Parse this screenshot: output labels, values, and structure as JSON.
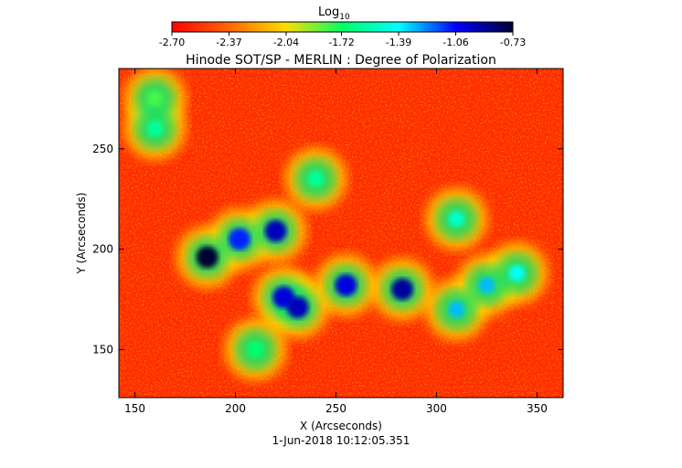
{
  "colorbar": {
    "label": "Log",
    "label_subscript": "10",
    "ticks": [
      "-2.70",
      "-2.37",
      "-2.04",
      "-1.72",
      "-1.39",
      "-1.06",
      "-0.73"
    ],
    "range": [
      -2.7,
      -0.73
    ],
    "colormap": [
      "#ff0000",
      "#ff6600",
      "#ffdd00",
      "#00ff66",
      "#00ffff",
      "#0000ff",
      "#000033"
    ]
  },
  "chart_data": {
    "type": "heatmap",
    "title": "Hinode SOT/SP - MERLIN : Degree of Polarization",
    "xlabel": "X (Arcseconds)",
    "ylabel": "Y (Arcseconds)",
    "xlim": [
      142,
      363
    ],
    "ylim": [
      126,
      290
    ],
    "xticks": [
      150,
      200,
      250,
      300,
      350
    ],
    "yticks": [
      150,
      200,
      250
    ],
    "value_label": "Log10 Degree of Polarization",
    "value_range": [
      -2.7,
      -0.73
    ],
    "features": [
      {
        "x": 186,
        "y": 196,
        "value": -0.73
      },
      {
        "x": 220,
        "y": 209,
        "value": -0.95
      },
      {
        "x": 202,
        "y": 205,
        "value": -1.1
      },
      {
        "x": 224,
        "y": 176,
        "value": -1.0
      },
      {
        "x": 231,
        "y": 171,
        "value": -0.95
      },
      {
        "x": 283,
        "y": 180,
        "value": -0.9
      },
      {
        "x": 255,
        "y": 182,
        "value": -1.0
      },
      {
        "x": 310,
        "y": 170,
        "value": -1.3
      },
      {
        "x": 325,
        "y": 182,
        "value": -1.3
      },
      {
        "x": 340,
        "y": 188,
        "value": -1.4
      },
      {
        "x": 160,
        "y": 260,
        "value": -1.6
      },
      {
        "x": 240,
        "y": 235,
        "value": -1.6
      },
      {
        "x": 310,
        "y": 215,
        "value": -1.5
      },
      {
        "x": 210,
        "y": 150,
        "value": -1.7
      },
      {
        "x": 160,
        "y": 275,
        "value": -1.8
      }
    ]
  },
  "footer": {
    "timestamp": "1-Jun-2018 10:12:05.351"
  }
}
